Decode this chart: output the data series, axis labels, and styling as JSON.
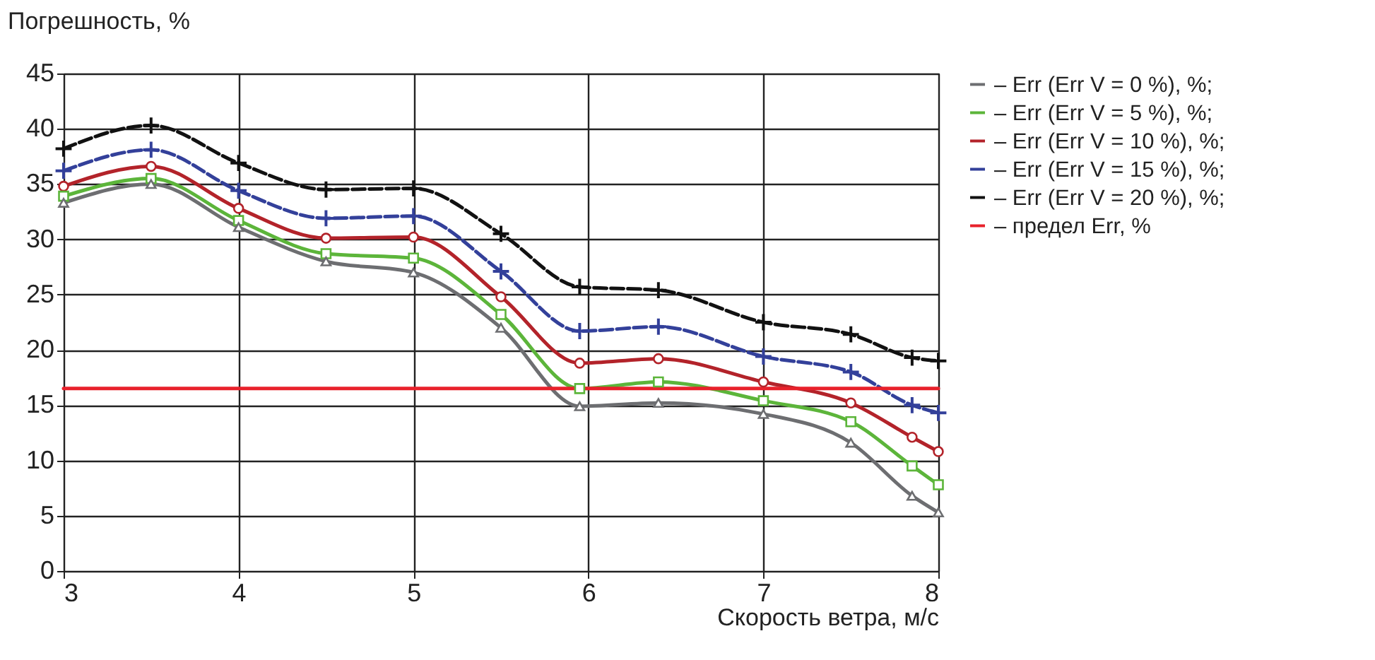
{
  "chart_data": {
    "type": "line",
    "xlabel": "Скорость ветра, м/с",
    "ylabel": "Погрешность, %",
    "x": [
      3,
      3.5,
      4,
      4.5,
      5,
      5.5,
      5.95,
      6.4,
      7,
      7.5,
      7.85,
      8
    ],
    "xlim": [
      3,
      8
    ],
    "xticks": [
      3,
      4,
      5,
      6,
      7,
      8
    ],
    "ylim": [
      0,
      45
    ],
    "yticks": [
      0,
      5,
      10,
      15,
      20,
      25,
      30,
      35,
      40,
      45
    ],
    "grid": true,
    "legend": "right",
    "series": [
      {
        "name": "– Err (Err V = 0 %), %;",
        "color": "#6d6e71",
        "marker": "triangle",
        "line_style": "solid",
        "values": [
          33.3,
          35.0,
          31.1,
          28.0,
          27.0,
          22.0,
          14.9,
          15.2,
          14.2,
          11.6,
          6.8,
          5.3
        ]
      },
      {
        "name": "– Err (Err V = 5 %), %;",
        "color": "#5cb53a",
        "marker": "square",
        "line_style": "solid",
        "values": [
          33.9,
          35.5,
          31.7,
          28.7,
          28.3,
          23.2,
          16.5,
          17.1,
          15.4,
          13.5,
          9.5,
          7.8
        ]
      },
      {
        "name": "– Err (Err V = 10 %), %;",
        "color": "#b3232a",
        "marker": "circle",
        "line_style": "solid",
        "values": [
          34.8,
          36.6,
          32.8,
          30.1,
          30.2,
          24.8,
          18.8,
          19.2,
          17.1,
          15.2,
          12.1,
          10.8
        ]
      },
      {
        "name": "– Err (Err V = 15 %), %;",
        "color": "#33409a",
        "marker": "cross",
        "line_style": "dashed",
        "values": [
          36.2,
          38.1,
          34.4,
          31.9,
          32.1,
          27.1,
          21.7,
          22.1,
          19.4,
          18.0,
          15.0,
          14.3
        ]
      },
      {
        "name": "– Err (Err V = 20 %), %;",
        "color": "#111111",
        "marker": "cross",
        "line_style": "dashed",
        "values": [
          38.2,
          40.3,
          36.9,
          34.5,
          34.6,
          30.5,
          25.7,
          25.4,
          22.5,
          21.4,
          19.3,
          19.0
        ]
      },
      {
        "name": "– предел Err, %",
        "color": "#e8212b",
        "line_style": "solid",
        "values": [
          16.5,
          16.5,
          16.5,
          16.5,
          16.5,
          16.5,
          16.5,
          16.5,
          16.5,
          16.5,
          16.5,
          16.5
        ]
      }
    ]
  }
}
